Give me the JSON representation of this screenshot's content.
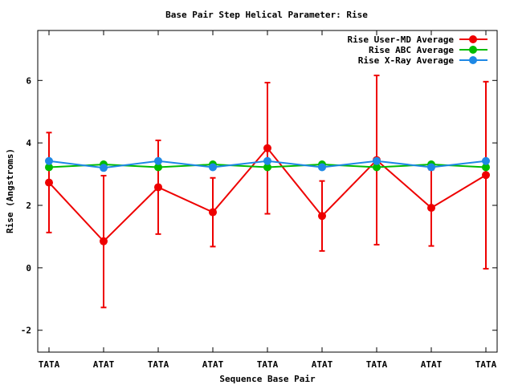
{
  "chart_data": {
    "type": "line",
    "title": "Base Pair Step Helical Parameter: Rise",
    "xlabel": "Sequence Base Pair",
    "ylabel": "Rise (Angstroms)",
    "categories": [
      "TATA",
      "ATAT",
      "TATA",
      "ATAT",
      "TATA",
      "ATAT",
      "TATA",
      "ATAT",
      "TATA"
    ],
    "ylim": [
      -2.7,
      7.6
    ],
    "yticks": [
      -2,
      0,
      2,
      4,
      6
    ],
    "grid": false,
    "legend_position": "top-right",
    "series": [
      {
        "name": "Rise User-MD Average",
        "color": "#ee0000",
        "values": [
          2.73,
          0.85,
          2.58,
          1.78,
          3.83,
          1.66,
          3.45,
          1.92,
          2.97
        ],
        "error_low": [
          1.13,
          -1.27,
          1.08,
          0.68,
          1.73,
          0.54,
          0.74,
          0.7,
          -0.03
        ],
        "error_high": [
          4.33,
          2.95,
          4.08,
          2.88,
          5.93,
          2.78,
          6.16,
          3.14,
          5.96
        ]
      },
      {
        "name": "Rise ABC Average",
        "color": "#00bb00",
        "values": [
          3.22,
          3.31,
          3.22,
          3.31,
          3.22,
          3.31,
          3.22,
          3.31,
          3.22
        ]
      },
      {
        "name": "Rise X-Ray Average",
        "color": "#1e88e5",
        "values": [
          3.42,
          3.2,
          3.42,
          3.22,
          3.42,
          3.22,
          3.42,
          3.22,
          3.42
        ]
      }
    ]
  }
}
